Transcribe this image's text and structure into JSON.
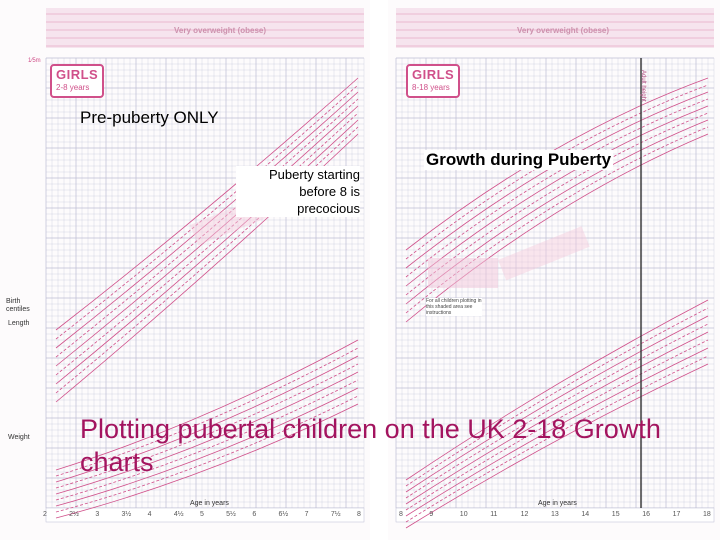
{
  "left_chart": {
    "title": "GIRLS",
    "subtitle": "2-8 years",
    "banner": "Very overweight (obese)",
    "top_left_unit": "1⁄5m",
    "age_axis": "Age in years",
    "left_labels": [
      "Birth centiles",
      "Length",
      "Weight"
    ],
    "ages": [
      "2",
      "2½",
      "3",
      "3½",
      "4",
      "4½",
      "5",
      "5½",
      "6",
      "6½",
      "7",
      "7½",
      "8"
    ]
  },
  "right_chart": {
    "title": "GIRLS",
    "subtitle": "8-18 years",
    "banner": "Very overweight (obese)",
    "age_axis": "Age in years",
    "ages": [
      "8",
      "9",
      "10",
      "11",
      "12",
      "13",
      "14",
      "15",
      "16",
      "17",
      "18"
    ],
    "note_label": "For all children plotting in this shaded area see instructions",
    "vertical_rule": "Adult height"
  },
  "overlay": {
    "prepuberty": "Pre-puberty ONLY",
    "precocious": "Puberty starting before 8 is precocious",
    "during": "Growth during Puberty",
    "main": "Plotting pubertal children on the UK 2-18 Growth charts"
  },
  "colors": {
    "centile_line": "#d0508a",
    "grid": "#bcbcd4",
    "main_text": "#a3145f"
  }
}
